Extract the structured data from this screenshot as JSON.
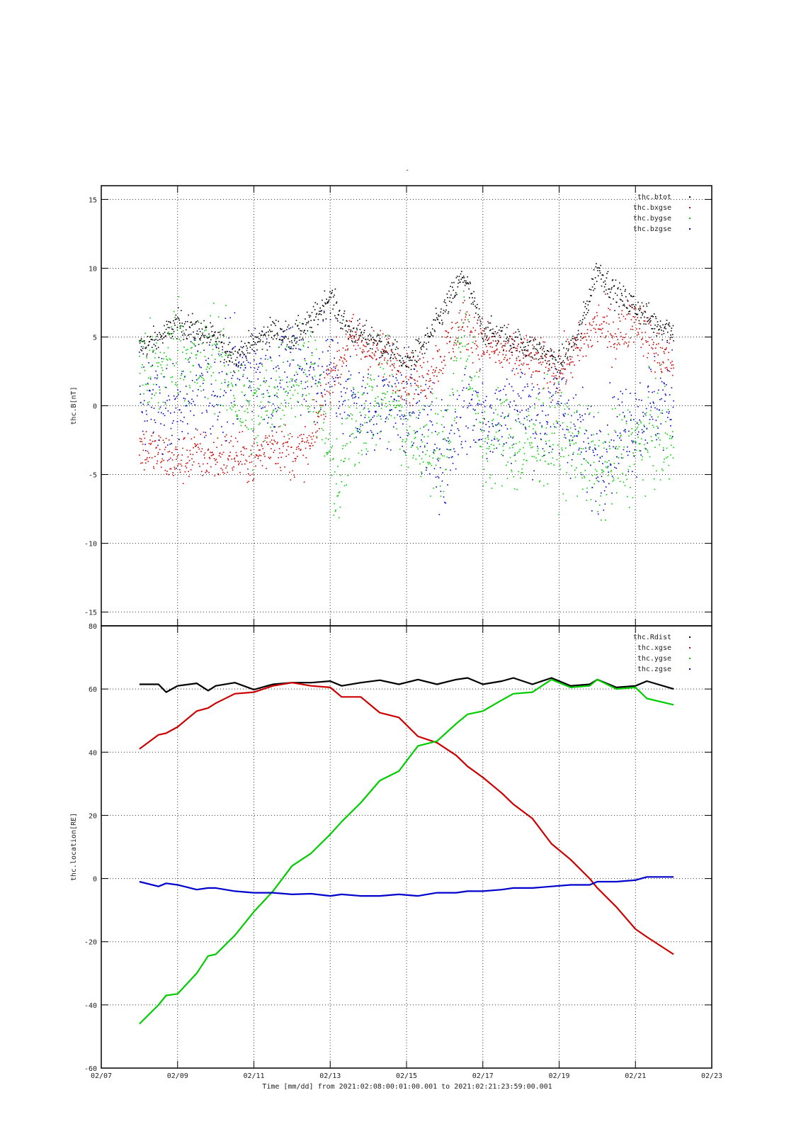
{
  "page": {
    "title_mark": "-",
    "xlabel": "Time [mm/dd]  from 2021:02:08:00:01:00.001  to  2021:02:21:23:59:00.001"
  },
  "x_axis": {
    "tick_labels": [
      "02/07",
      "02/09",
      "02/11",
      "02/13",
      "02/15",
      "02/17",
      "02/19",
      "02/21",
      "02/23"
    ],
    "tick_values": [
      7,
      9,
      11,
      13,
      15,
      17,
      19,
      21,
      23
    ],
    "gridlines": [
      8,
      9,
      10,
      11,
      12,
      13,
      14,
      15,
      16,
      17,
      18,
      19,
      20,
      21,
      22
    ],
    "xlim": [
      7,
      23
    ]
  },
  "chart_data": [
    {
      "type": "scatter",
      "ylabel": "thc.B[nT]",
      "ylim": [
        -16,
        16
      ],
      "yticks": [
        15,
        10,
        5,
        0,
        -5,
        -10,
        -15
      ],
      "grid": true,
      "legend_position": "top-right",
      "x": [
        8.0,
        8.5,
        9.0,
        9.5,
        10.0,
        10.5,
        11.0,
        11.5,
        12.0,
        12.5,
        13.0,
        13.25,
        13.5,
        14.0,
        14.5,
        15.0,
        15.5,
        16.0,
        16.5,
        17.0,
        17.5,
        18.0,
        18.5,
        19.0,
        19.5,
        20.0,
        20.5,
        21.0,
        21.5,
        22.0
      ],
      "series": [
        {
          "name": "thc.btot",
          "color": "#000000",
          "values": [
            4.2,
            4.8,
            6.0,
            5.5,
            4.8,
            3.5,
            4.5,
            5.5,
            5.0,
            6.0,
            8.0,
            6.5,
            5.5,
            5.0,
            4.2,
            3.0,
            4.5,
            7.0,
            9.5,
            5.5,
            5.0,
            4.5,
            4.0,
            3.0,
            5.0,
            10.0,
            8.0,
            7.2,
            6.0,
            5.5
          ]
        },
        {
          "name": "thc.bxgse",
          "color": "#cc0000",
          "values": [
            -3.0,
            -3.5,
            -4.0,
            -3.5,
            -3.8,
            -3.5,
            -4.0,
            -2.5,
            -3.5,
            -3.0,
            2.5,
            3.0,
            5.0,
            4.0,
            3.5,
            2.0,
            2.0,
            4.0,
            6.0,
            4.5,
            3.8,
            3.5,
            3.0,
            2.5,
            4.0,
            6.0,
            5.0,
            6.5,
            4.0,
            3.0
          ]
        },
        {
          "name": "thc.bygse",
          "color": "#00cc00",
          "values": [
            3.0,
            2.0,
            4.5,
            2.5,
            4.0,
            1.0,
            -1.0,
            1.0,
            2.0,
            3.0,
            -4.0,
            -6.0,
            -2.0,
            0.0,
            1.0,
            -2.0,
            -2.5,
            -3.0,
            6.0,
            -3.0,
            -2.0,
            -3.5,
            -2.0,
            -2.5,
            -3.0,
            -5.0,
            -4.0,
            -3.0,
            -2.0,
            -3.0
          ]
        },
        {
          "name": "thc.bzgse",
          "color": "#0000cc",
          "values": [
            1.0,
            0.0,
            -1.0,
            2.5,
            1.0,
            2.0,
            3.0,
            1.5,
            3.5,
            2.0,
            3.0,
            1.0,
            0.5,
            -0.5,
            0.5,
            0.0,
            -1.5,
            -4.0,
            0.0,
            -0.5,
            -1.0,
            0.5,
            -1.0,
            0.0,
            -2.0,
            -4.0,
            -2.0,
            -1.0,
            0.0,
            0.5
          ]
        }
      ]
    },
    {
      "type": "line",
      "ylabel": "thc.location[RE]",
      "xlabel": "Time [mm/dd]  from 2021:02:08:00:01:00.001  to  2021:02:21:23:59:00.001",
      "ylim": [
        -60,
        80
      ],
      "yticks": [
        80,
        60,
        40,
        20,
        0,
        -20,
        -40,
        -60
      ],
      "grid": true,
      "legend_position": "top-right",
      "x": [
        8.0,
        8.5,
        8.7,
        9.0,
        9.5,
        9.8,
        10.0,
        10.5,
        11.0,
        11.5,
        12.0,
        12.5,
        13.0,
        13.3,
        13.8,
        14.3,
        14.8,
        15.3,
        15.8,
        16.3,
        16.6,
        17.0,
        17.5,
        17.8,
        18.3,
        18.8,
        19.3,
        19.8,
        20.0,
        20.5,
        21.0,
        21.3,
        22.0
      ],
      "series": [
        {
          "name": "thc.Rdist",
          "color": "#000000",
          "values": [
            61.5,
            61.5,
            59.0,
            61.0,
            61.8,
            59.5,
            61.0,
            62.0,
            59.8,
            61.5,
            62.0,
            62.0,
            62.5,
            61.0,
            62.0,
            62.8,
            61.5,
            63.0,
            61.5,
            63.0,
            63.5,
            61.5,
            62.5,
            63.5,
            61.5,
            63.5,
            61.0,
            61.5,
            63.0,
            60.5,
            61.0,
            62.5,
            60.0
          ]
        },
        {
          "name": "thc.xgse",
          "color": "#cc0000",
          "values": [
            41.0,
            45.5,
            46.0,
            48.0,
            53.0,
            54.0,
            55.5,
            58.5,
            59.0,
            61.0,
            62.0,
            61.0,
            60.5,
            57.5,
            57.5,
            52.5,
            51.0,
            45.0,
            43.0,
            39.0,
            35.5,
            32.0,
            27.0,
            23.5,
            19.0,
            11.0,
            6.0,
            0.0,
            -3.0,
            -9.0,
            -16.0,
            -18.5,
            -24.0
          ]
        },
        {
          "name": "thc.ygse",
          "color": "#00cc00",
          "values": [
            -46.0,
            -40.0,
            -37.0,
            -36.5,
            -30.0,
            -24.5,
            -24.0,
            -18.0,
            -10.5,
            -4.0,
            4.0,
            8.0,
            14.0,
            18.0,
            24.0,
            31.0,
            34.0,
            42.0,
            43.5,
            49.0,
            52.0,
            53.0,
            56.5,
            58.5,
            59.0,
            63.0,
            60.5,
            61.0,
            63.0,
            60.0,
            60.5,
            57.0,
            55.0
          ]
        },
        {
          "name": "thc.zgse",
          "color": "#0000cc",
          "values": [
            -1.0,
            -2.5,
            -1.5,
            -2.0,
            -3.5,
            -3.0,
            -3.0,
            -4.0,
            -4.5,
            -4.5,
            -5.0,
            -4.8,
            -5.5,
            -5.0,
            -5.5,
            -5.5,
            -5.0,
            -5.5,
            -4.5,
            -4.5,
            -4.0,
            -4.0,
            -3.5,
            -3.0,
            -3.0,
            -2.5,
            -2.0,
            -2.0,
            -1.0,
            -1.0,
            -0.5,
            0.5,
            0.5
          ]
        }
      ]
    }
  ]
}
